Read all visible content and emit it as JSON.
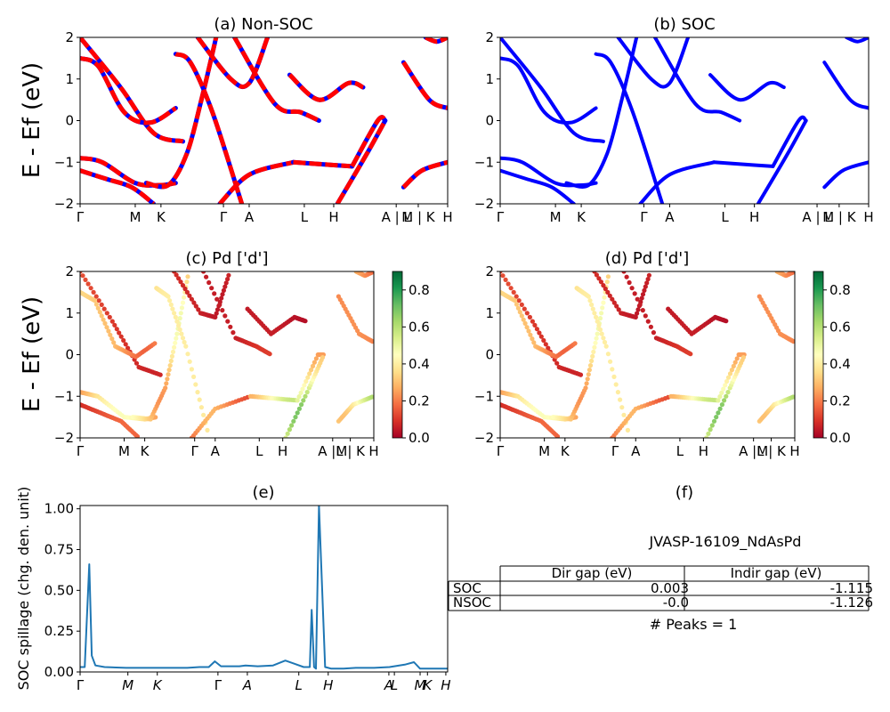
{
  "chart_data": [
    {
      "id": "a",
      "type": "line",
      "title": "(a) Non-SOC",
      "ylabel": "E - Ef (eV)",
      "ylim": [
        -2,
        2
      ],
      "yticks": [
        "2",
        "1",
        "0",
        "−1",
        "−2"
      ],
      "xticks": [
        "Γ",
        "M",
        "K",
        "Γ",
        "A",
        "L",
        "H",
        "A | L",
        "M | K",
        "H"
      ],
      "style": "blue bands overlaid with dashed red bands",
      "colors": {
        "solid": "#0000ff",
        "dashed": "#ff0000"
      },
      "series": [
        {
          "x": [
            0,
            1.1,
            2.0,
            2.8
          ],
          "y": [
            2.0,
            0.8,
            -0.3,
            -0.5
          ]
        },
        {
          "x": [
            0,
            0.5,
            1.2,
            1.9,
            2.6
          ],
          "y": [
            1.5,
            1.3,
            0.2,
            -0.05,
            0.3
          ]
        },
        {
          "x": [
            0,
            0.6,
            1.5,
            2.2,
            2.6
          ],
          "y": [
            -0.9,
            -1.0,
            -1.5,
            -1.55,
            -1.5
          ]
        },
        {
          "x": [
            0,
            0.7,
            1.4,
            2.0
          ],
          "y": [
            -1.2,
            -1.4,
            -1.6,
            -2.0
          ]
        },
        {
          "x": [
            1.8,
            2.4,
            2.9,
            3.3,
            3.7
          ],
          "y": [
            -1.5,
            -1.55,
            -0.8,
            0.5,
            2.0
          ]
        },
        {
          "x": [
            2.6,
            3.0,
            3.6,
            4.4
          ],
          "y": [
            1.6,
            1.4,
            0.2,
            -2.0
          ]
        },
        {
          "x": [
            3.2,
            4.1,
            4.6,
            5.1
          ],
          "y": [
            2.0,
            1.0,
            0.9,
            2.0
          ]
        },
        {
          "x": [
            3.8,
            4.6,
            5.8
          ],
          "y": [
            -2.0,
            -1.3,
            -1.0
          ]
        },
        {
          "x": [
            4.2,
            5.3,
            6.0,
            6.5
          ],
          "y": [
            2.0,
            0.4,
            0.2,
            0.0
          ]
        },
        {
          "x": [
            5.8,
            6.6,
            7.4
          ],
          "y": [
            -1.0,
            -1.05,
            -1.1
          ]
        },
        {
          "x": [
            5.7,
            6.5,
            7.3,
            7.7
          ],
          "y": [
            1.1,
            0.5,
            0.9,
            0.8
          ]
        },
        {
          "x": [
            7.4,
            8.1,
            8.3
          ],
          "y": [
            -1.1,
            0.0,
            0.0
          ]
        },
        {
          "x": [
            7.0,
            7.8,
            8.3
          ],
          "y": [
            -2.0,
            -0.8,
            0.0
          ]
        },
        {
          "x": [
            8.8,
            9.5,
            10.0
          ],
          "y": [
            1.4,
            0.5,
            0.3
          ]
        },
        {
          "x": [
            8.8,
            9.3,
            10.0
          ],
          "y": [
            -1.6,
            -1.2,
            -1.0
          ]
        },
        {
          "x": [
            9.4,
            9.7,
            10.0
          ],
          "y": [
            2.0,
            1.9,
            2.0
          ]
        }
      ]
    },
    {
      "id": "b",
      "type": "line",
      "title": "(b) SOC",
      "ylim": [
        -2,
        2
      ],
      "yticks": [
        "2",
        "1",
        "0",
        "−1",
        "−2"
      ],
      "xticks": [
        "Γ",
        "M",
        "K",
        "Γ",
        "A",
        "L",
        "H",
        "A | L",
        "M | K",
        "H"
      ],
      "colors": {
        "solid": "#0000ff"
      },
      "series": [
        {
          "x": [
            0,
            1.1,
            2.0,
            2.8
          ],
          "y": [
            2.0,
            0.8,
            -0.3,
            -0.5
          ]
        },
        {
          "x": [
            0,
            0.5,
            1.2,
            1.9,
            2.6
          ],
          "y": [
            1.5,
            1.3,
            0.2,
            -0.05,
            0.3
          ]
        },
        {
          "x": [
            0,
            0.6,
            1.5,
            2.2,
            2.6
          ],
          "y": [
            -0.9,
            -1.0,
            -1.5,
            -1.55,
            -1.5
          ]
        },
        {
          "x": [
            0,
            0.7,
            1.4,
            2.0
          ],
          "y": [
            -1.2,
            -1.4,
            -1.6,
            -2.0
          ]
        },
        {
          "x": [
            1.8,
            2.4,
            2.9,
            3.3,
            3.7
          ],
          "y": [
            -1.5,
            -1.55,
            -0.8,
            0.5,
            2.0
          ]
        },
        {
          "x": [
            2.6,
            3.0,
            3.6,
            4.4
          ],
          "y": [
            1.6,
            1.4,
            0.2,
            -2.0
          ]
        },
        {
          "x": [
            3.2,
            4.1,
            4.6,
            5.1
          ],
          "y": [
            2.0,
            1.0,
            0.9,
            2.0
          ]
        },
        {
          "x": [
            3.8,
            4.6,
            5.8
          ],
          "y": [
            -2.0,
            -1.3,
            -1.0
          ]
        },
        {
          "x": [
            4.2,
            5.3,
            6.0,
            6.5
          ],
          "y": [
            2.0,
            0.4,
            0.2,
            0.0
          ]
        },
        {
          "x": [
            5.8,
            6.6,
            7.4
          ],
          "y": [
            -1.0,
            -1.05,
            -1.1
          ]
        },
        {
          "x": [
            5.7,
            6.5,
            7.3,
            7.7
          ],
          "y": [
            1.1,
            0.5,
            0.9,
            0.8
          ]
        },
        {
          "x": [
            7.4,
            8.1,
            8.3
          ],
          "y": [
            -1.1,
            0.0,
            0.0
          ]
        },
        {
          "x": [
            7.0,
            7.8,
            8.3
          ],
          "y": [
            -2.0,
            -0.8,
            0.0
          ]
        },
        {
          "x": [
            8.8,
            9.5,
            10.0
          ],
          "y": [
            1.4,
            0.5,
            0.3
          ]
        },
        {
          "x": [
            8.8,
            9.3,
            10.0
          ],
          "y": [
            -1.6,
            -1.2,
            -1.0
          ]
        },
        {
          "x": [
            9.4,
            9.7,
            10.0
          ],
          "y": [
            2.0,
            1.9,
            2.0
          ]
        }
      ]
    },
    {
      "id": "c",
      "type": "scatter",
      "title": "(c)  Pd ['d']",
      "ylabel": "E - Ef (eV)",
      "ylim": [
        -2,
        2
      ],
      "yticks": [
        "2",
        "1",
        "0",
        "−1",
        "−2"
      ],
      "xticks": [
        "Γ",
        "M",
        "K",
        "Γ",
        "A",
        "L",
        "H",
        "A |M",
        "L | K",
        "H"
      ],
      "colorbar": {
        "range": [
          0,
          0.9
        ],
        "ticks": [
          "0.0",
          "0.2",
          "0.4",
          "0.6",
          "0.8"
        ],
        "colormap": "RdYlGn"
      },
      "series": [
        {
          "x": [
            0,
            1.1,
            2.0,
            2.8
          ],
          "y": [
            2.0,
            0.8,
            -0.3,
            -0.5
          ],
          "weight": 0.12
        },
        {
          "x": [
            0,
            0.5,
            1.2,
            1.9,
            2.6
          ],
          "y": [
            1.5,
            1.3,
            0.2,
            -0.05,
            0.3
          ],
          "weight": 0.3
        },
        {
          "x": [
            0,
            0.6,
            1.5,
            2.2,
            2.6
          ],
          "y": [
            -0.9,
            -1.0,
            -1.5,
            -1.55,
            -1.5
          ],
          "weight": 0.4
        },
        {
          "x": [
            0,
            0.7,
            1.4,
            2.0
          ],
          "y": [
            -1.2,
            -1.4,
            -1.6,
            -2.0
          ],
          "weight": 0.15
        },
        {
          "x": [
            1.8,
            2.4,
            2.9,
            3.3,
            3.7
          ],
          "y": [
            -1.5,
            -1.55,
            -0.8,
            0.5,
            2.0
          ],
          "weight": 0.42
        },
        {
          "x": [
            2.6,
            3.0,
            3.6,
            4.4
          ],
          "y": [
            1.6,
            1.4,
            0.2,
            -2.0
          ],
          "weight": 0.35
        },
        {
          "x": [
            3.2,
            4.1,
            4.6,
            5.1
          ],
          "y": [
            2.0,
            1.0,
            0.9,
            2.0
          ],
          "weight": 0.08
        },
        {
          "x": [
            3.8,
            4.6,
            5.8
          ],
          "y": [
            -2.0,
            -1.3,
            -1.0
          ],
          "weight": 0.25
        },
        {
          "x": [
            4.2,
            5.3,
            6.0,
            6.5
          ],
          "y": [
            2.0,
            0.4,
            0.2,
            0.0
          ],
          "weight": 0.1
        },
        {
          "x": [
            5.8,
            6.6,
            7.4
          ],
          "y": [
            -1.0,
            -1.05,
            -1.1
          ],
          "weight": 0.5
        },
        {
          "x": [
            5.7,
            6.5,
            7.3,
            7.7
          ],
          "y": [
            1.1,
            0.5,
            0.9,
            0.8
          ],
          "weight": 0.05
        },
        {
          "x": [
            7.4,
            8.1,
            8.3
          ],
          "y": [
            -1.1,
            0.0,
            0.0
          ],
          "weight": 0.45
        },
        {
          "x": [
            7.0,
            7.8,
            8.3
          ],
          "y": [
            -2.0,
            -0.8,
            0.0
          ],
          "weight": 0.6
        },
        {
          "x": [
            8.8,
            9.5,
            10.0
          ],
          "y": [
            1.4,
            0.5,
            0.3
          ],
          "weight": 0.2
        },
        {
          "x": [
            8.8,
            9.3,
            10.0
          ],
          "y": [
            -1.6,
            -1.2,
            -1.0
          ],
          "weight": 0.55
        },
        {
          "x": [
            9.4,
            9.7,
            10.0
          ],
          "y": [
            2.0,
            1.9,
            2.0
          ],
          "weight": 0.3
        }
      ]
    },
    {
      "id": "d",
      "type": "scatter",
      "title": "(d) Pd ['d']",
      "ylim": [
        -2,
        2
      ],
      "yticks": [
        "2",
        "1",
        "0",
        "−1",
        "−2"
      ],
      "xticks": [
        "Γ",
        "M",
        "K",
        "Γ",
        "A",
        "L",
        "H",
        "A |M",
        "L | K",
        "H"
      ],
      "colorbar": {
        "range": [
          0,
          0.9
        ],
        "ticks": [
          "0.0",
          "0.2",
          "0.4",
          "0.6",
          "0.8"
        ],
        "colormap": "RdYlGn"
      },
      "series": [
        {
          "x": [
            0,
            1.1,
            2.0,
            2.8
          ],
          "y": [
            2.0,
            0.8,
            -0.3,
            -0.5
          ],
          "weight": 0.12
        },
        {
          "x": [
            0,
            0.5,
            1.2,
            1.9,
            2.6
          ],
          "y": [
            1.5,
            1.3,
            0.2,
            -0.05,
            0.3
          ],
          "weight": 0.3
        },
        {
          "x": [
            0,
            0.6,
            1.5,
            2.2,
            2.6
          ],
          "y": [
            -0.9,
            -1.0,
            -1.5,
            -1.55,
            -1.5
          ],
          "weight": 0.4
        },
        {
          "x": [
            0,
            0.7,
            1.4,
            2.0
          ],
          "y": [
            -1.2,
            -1.4,
            -1.6,
            -2.0
          ],
          "weight": 0.15
        },
        {
          "x": [
            1.8,
            2.4,
            2.9,
            3.3,
            3.7
          ],
          "y": [
            -1.5,
            -1.55,
            -0.8,
            0.5,
            2.0
          ],
          "weight": 0.42
        },
        {
          "x": [
            2.6,
            3.0,
            3.6,
            4.4
          ],
          "y": [
            1.6,
            1.4,
            0.2,
            -2.0
          ],
          "weight": 0.35
        },
        {
          "x": [
            3.2,
            4.1,
            4.6,
            5.1
          ],
          "y": [
            2.0,
            1.0,
            0.9,
            2.0
          ],
          "weight": 0.08
        },
        {
          "x": [
            3.8,
            4.6,
            5.8
          ],
          "y": [
            -2.0,
            -1.3,
            -1.0
          ],
          "weight": 0.25
        },
        {
          "x": [
            4.2,
            5.3,
            6.0,
            6.5
          ],
          "y": [
            2.0,
            0.4,
            0.2,
            0.0
          ],
          "weight": 0.1
        },
        {
          "x": [
            5.8,
            6.6,
            7.4
          ],
          "y": [
            -1.0,
            -1.05,
            -1.1
          ],
          "weight": 0.5
        },
        {
          "x": [
            5.7,
            6.5,
            7.3,
            7.7
          ],
          "y": [
            1.1,
            0.5,
            0.9,
            0.8
          ],
          "weight": 0.05
        },
        {
          "x": [
            7.4,
            8.1,
            8.3
          ],
          "y": [
            -1.1,
            0.0,
            0.0
          ],
          "weight": 0.45
        },
        {
          "x": [
            7.0,
            7.8,
            8.3
          ],
          "y": [
            -2.0,
            -0.8,
            0.0
          ],
          "weight": 0.6
        },
        {
          "x": [
            8.8,
            9.5,
            10.0
          ],
          "y": [
            1.4,
            0.5,
            0.3
          ],
          "weight": 0.2
        },
        {
          "x": [
            8.8,
            9.3,
            10.0
          ],
          "y": [
            -1.6,
            -1.2,
            -1.0
          ],
          "weight": 0.55
        },
        {
          "x": [
            9.4,
            9.7,
            10.0
          ],
          "y": [
            2.0,
            1.9,
            2.0
          ],
          "weight": 0.3
        }
      ]
    },
    {
      "id": "e",
      "type": "line",
      "title": "(e)",
      "ylabel": "SOC spillage (chg. den. unit)",
      "ylim": [
        0,
        1.02
      ],
      "yticks": [
        "0.00",
        "0.25",
        "0.50",
        "0.75",
        "1.00"
      ],
      "xticks": [
        "Γ",
        "M",
        "K",
        "Γ",
        "A",
        "L",
        "H",
        "A",
        "L",
        "M",
        "K",
        "H"
      ],
      "color": "#1f77b4",
      "x": [
        0.0,
        0.15,
        0.3,
        0.38,
        0.5,
        0.8,
        1.5,
        2.5,
        3.0,
        3.5,
        3.9,
        4.2,
        4.4,
        4.6,
        4.9,
        5.2,
        5.4,
        5.8,
        6.3,
        6.7,
        7.0,
        7.3,
        7.5,
        7.56,
        7.64,
        7.7,
        7.8,
        8.0,
        8.1,
        8.2,
        8.4,
        8.6,
        9.0,
        9.6,
        10.1,
        10.6,
        10.9,
        11.1,
        11.5,
        12.0
      ],
      "y": [
        0.03,
        0.03,
        0.66,
        0.1,
        0.04,
        0.03,
        0.025,
        0.025,
        0.025,
        0.025,
        0.03,
        0.03,
        0.065,
        0.035,
        0.035,
        0.035,
        0.04,
        0.035,
        0.04,
        0.07,
        0.05,
        0.03,
        0.03,
        0.38,
        0.03,
        0.02,
        1.02,
        0.03,
        0.025,
        0.02,
        0.02,
        0.02,
        0.025,
        0.025,
        0.03,
        0.045,
        0.06,
        0.02,
        0.02,
        0.02
      ]
    }
  ],
  "table": {
    "panel_title": "(f)",
    "caption": "JVASP-16109_NdAsPd",
    "headers": [
      "Dir gap (eV)",
      "Indir gap (eV)"
    ],
    "rows": [
      {
        "label": "SOC",
        "dir": "0.003",
        "indir": "-1.115"
      },
      {
        "label": "NSOC",
        "dir": "-0.0",
        "indir": "-1.126"
      }
    ],
    "footer": "# Peaks = 1"
  }
}
